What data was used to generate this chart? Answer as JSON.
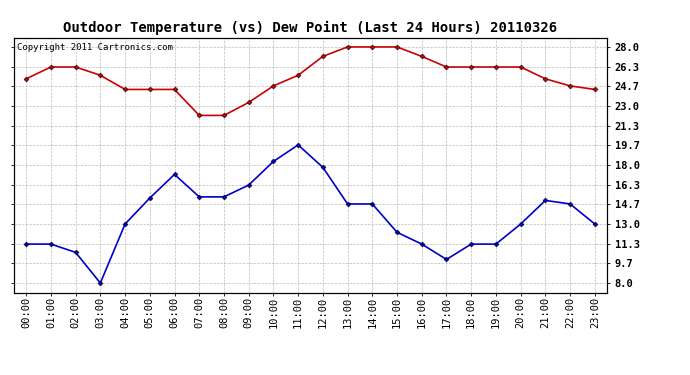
{
  "title": "Outdoor Temperature (vs) Dew Point (Last 24 Hours) 20110326",
  "copyright_text": "Copyright 2011 Cartronics.com",
  "x_labels": [
    "00:00",
    "01:00",
    "02:00",
    "03:00",
    "04:00",
    "05:00",
    "06:00",
    "07:00",
    "08:00",
    "09:00",
    "10:00",
    "11:00",
    "12:00",
    "13:00",
    "14:00",
    "15:00",
    "16:00",
    "17:00",
    "18:00",
    "19:00",
    "20:00",
    "21:00",
    "22:00",
    "23:00"
  ],
  "temp_data": [
    25.3,
    26.3,
    26.3,
    25.6,
    24.4,
    24.4,
    24.4,
    22.2,
    22.2,
    23.3,
    24.7,
    25.6,
    27.2,
    28.0,
    28.0,
    28.0,
    27.2,
    26.3,
    26.3,
    26.3,
    26.3,
    25.3,
    24.7,
    24.4
  ],
  "dew_data": [
    11.3,
    11.3,
    10.6,
    8.0,
    13.0,
    15.2,
    17.2,
    15.3,
    15.3,
    16.3,
    18.3,
    19.7,
    17.8,
    14.7,
    14.7,
    12.3,
    11.3,
    10.0,
    11.3,
    11.3,
    13.0,
    15.0,
    14.7,
    13.0
  ],
  "temp_color": "#cc0000",
  "dew_color": "#0000cc",
  "background_color": "#ffffff",
  "grid_color": "#bbbbbb",
  "yticks": [
    8.0,
    9.7,
    11.3,
    13.0,
    14.7,
    16.3,
    18.0,
    19.7,
    21.3,
    23.0,
    24.7,
    26.3,
    28.0
  ],
  "ylim": [
    7.2,
    28.8
  ],
  "marker": "D",
  "marker_size": 2.5,
  "linewidth": 1.2,
  "title_fontsize": 10,
  "tick_fontsize": 7.5,
  "copyright_fontsize": 6.5
}
